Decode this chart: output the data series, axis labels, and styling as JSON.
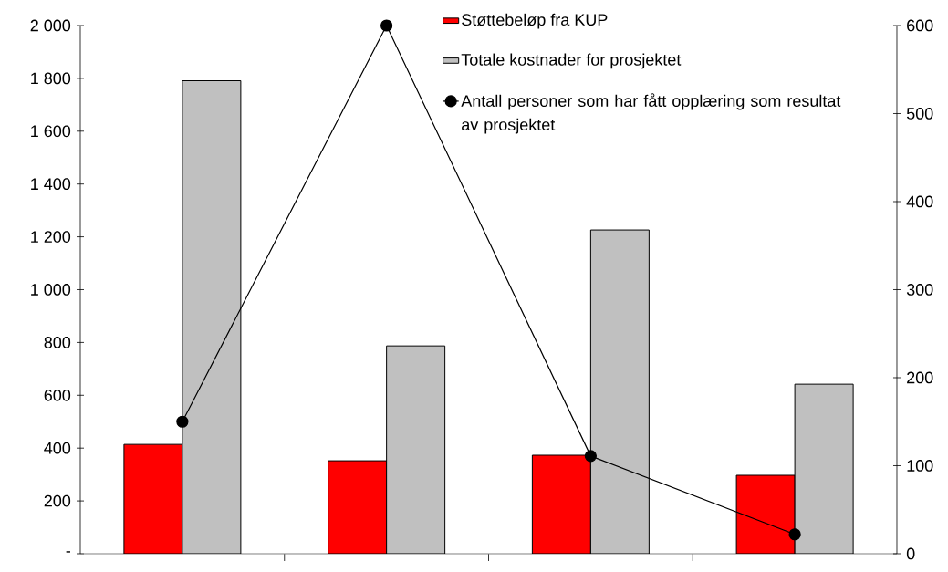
{
  "chart_data": {
    "type": "bar",
    "categories": [
      null,
      null,
      null,
      null
    ],
    "series": [
      {
        "name": "Støttebeløp fra KUP",
        "color": "#ff0000",
        "values": [
          414,
          352,
          373,
          297
        ]
      },
      {
        "name": "Totale kostnader for prosjektet",
        "color": "#c0c0c0",
        "values": [
          1791,
          787,
          1226,
          642
        ]
      },
      {
        "name": "Antall personer som har fått opplæring som resultat av prosjektet",
        "type": "line",
        "axis": "y2",
        "color": "#000000",
        "marker": "circle",
        "line_style": "solid",
        "values": [
          150,
          600,
          111,
          22
        ]
      }
    ],
    "ylim": [
      0,
      2000
    ],
    "yticks": [
      {
        "value": 0,
        "label": "-"
      },
      200,
      400,
      600,
      800,
      {
        "value": 1000,
        "label": "1 000"
      },
      {
        "value": 1200,
        "label": "1 200"
      },
      {
        "value": 1400,
        "label": "1 400"
      },
      {
        "value": 1600,
        "label": "1 600"
      },
      {
        "value": 1800,
        "label": "1 800"
      },
      {
        "value": 2000,
        "label": "2 000"
      }
    ],
    "y2lim": [
      0,
      600
    ],
    "y2ticks": [
      0,
      100,
      200,
      300,
      400,
      500,
      600
    ],
    "legend": "top right"
  }
}
